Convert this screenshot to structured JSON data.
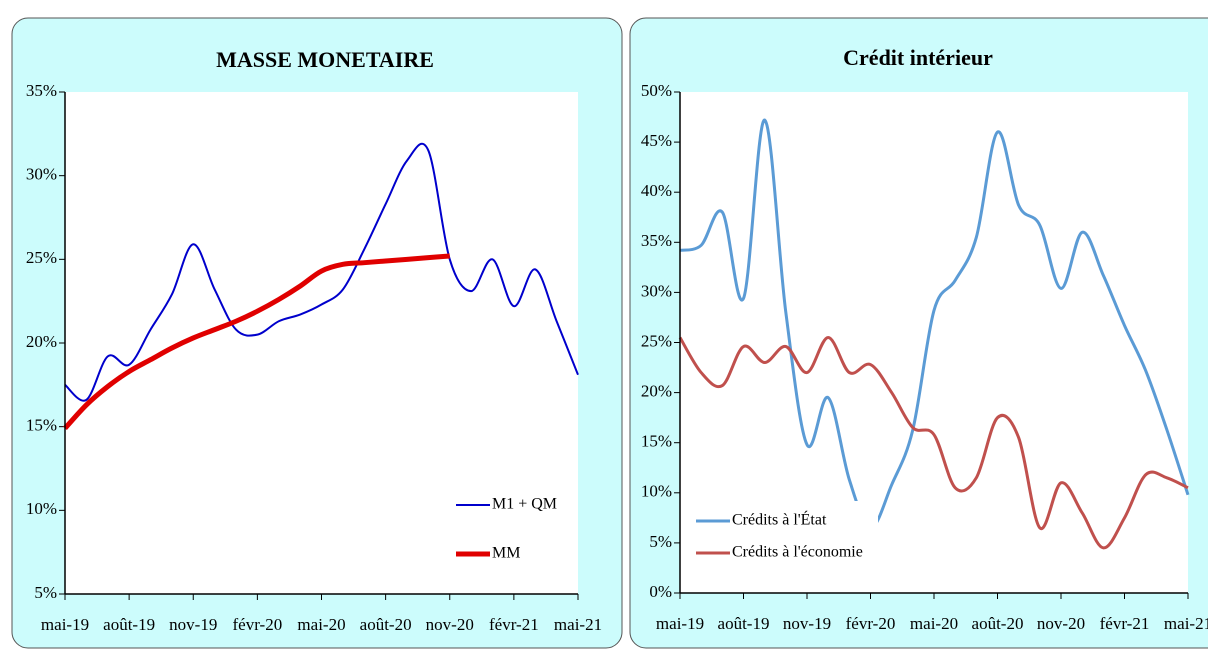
{
  "chart_data": [
    {
      "type": "line",
      "title": "MASSE MONETAIRE",
      "categories": [
        "mai-19",
        null,
        null,
        "août-19",
        null,
        null,
        "nov-19",
        null,
        null,
        "févr-20",
        null,
        null,
        "mai-20",
        null,
        null,
        "août-20",
        null,
        null,
        "nov-20",
        null,
        null,
        "févr-21",
        null,
        null,
        "mai-21"
      ],
      "series": [
        {
          "name": "M1 + QM",
          "color": "#0000cc",
          "values": [
            17.5,
            16.6,
            19.2,
            18.7,
            20.8,
            22.9,
            25.9,
            23.2,
            20.8,
            20.5,
            21.3,
            21.7,
            22.3,
            23.2,
            25.6,
            28.3,
            30.9,
            31.5,
            25.0,
            23.1,
            25.0,
            22.2,
            24.4,
            21.3,
            18.1
          ]
        },
        {
          "name": "MM",
          "color": "#e00000",
          "values": [
            14.9,
            16.3,
            17.4,
            18.3,
            19.0,
            19.7,
            20.3,
            20.8,
            21.3,
            21.9,
            22.6,
            23.4,
            24.3,
            24.7,
            24.8,
            24.9,
            25.0,
            25.1,
            25.2,
            null,
            null,
            null,
            null,
            null,
            null
          ]
        }
      ],
      "ylim": [
        5,
        35
      ],
      "yticks": [
        {
          "value": 5,
          "label": "5%"
        },
        {
          "value": 10,
          "label": "10%"
        },
        {
          "value": 15,
          "label": "15%"
        },
        {
          "value": 20,
          "label": "20%"
        },
        {
          "value": 25,
          "label": "25%"
        },
        {
          "value": 30,
          "label": "30%"
        },
        {
          "value": 35,
          "label": "35%"
        }
      ],
      "legend": "lower right"
    },
    {
      "type": "line",
      "title": "Crédit intérieur",
      "categories": [
        "mai-19",
        null,
        null,
        "août-19",
        null,
        null,
        "nov-19",
        null,
        null,
        "févr-20",
        null,
        null,
        "mai-20",
        null,
        null,
        "août-20",
        null,
        null,
        "nov-20",
        null,
        null,
        "févr-21",
        null,
        null,
        "mai-21"
      ],
      "series": [
        {
          "name": "Crédits à l'État",
          "color": "#5b9bd5",
          "values": [
            34.2,
            34.7,
            38.0,
            29.4,
            47.2,
            28.0,
            14.8,
            19.5,
            11.3,
            6.5,
            10.8,
            16.3,
            28.2,
            31.2,
            35.5,
            46.0,
            38.7,
            36.7,
            30.4,
            36.0,
            31.7,
            26.7,
            22.2,
            16.3,
            9.8
          ]
        },
        {
          "name": "Crédits à l'économie",
          "color": "#c0504d",
          "values": [
            25.5,
            22.0,
            20.7,
            24.6,
            23.0,
            24.6,
            22.0,
            25.5,
            22.0,
            22.8,
            20.0,
            16.5,
            15.8,
            10.5,
            11.5,
            17.5,
            15.5,
            6.5,
            11.0,
            8.0,
            4.5,
            7.5,
            11.8,
            11.5,
            10.5
          ]
        }
      ],
      "ylim": [
        0,
        50
      ],
      "yticks": [
        {
          "value": 0,
          "label": "0%"
        },
        {
          "value": 5,
          "label": "5%"
        },
        {
          "value": 10,
          "label": "10%"
        },
        {
          "value": 15,
          "label": "15%"
        },
        {
          "value": 20,
          "label": "20%"
        },
        {
          "value": 25,
          "label": "25%"
        },
        {
          "value": 30,
          "label": "30%"
        },
        {
          "value": 35,
          "label": "35%"
        },
        {
          "value": 40,
          "label": "40%"
        },
        {
          "value": 45,
          "label": "45%"
        },
        {
          "value": 50,
          "label": "50%"
        }
      ],
      "legend": "lower left"
    }
  ]
}
